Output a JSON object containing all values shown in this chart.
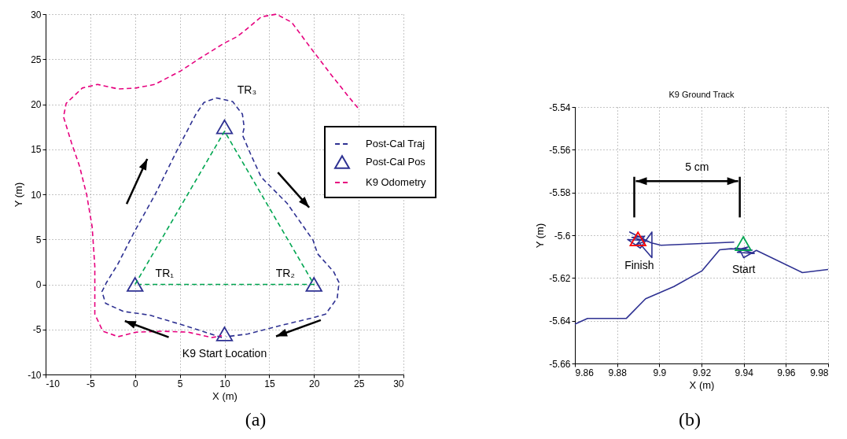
{
  "chart_data": [
    {
      "type": "line",
      "xlabel": "X (m)",
      "ylabel": "Y (m)",
      "xlim": [
        -10,
        30
      ],
      "ylim": [
        -10,
        30
      ],
      "xticks": [
        -10,
        -5,
        0,
        5,
        10,
        15,
        20,
        25,
        30
      ],
      "yticks": [
        -10,
        -5,
        0,
        5,
        10,
        15,
        20,
        25,
        30
      ],
      "grid": true,
      "legend": "right",
      "series": [
        {
          "name": "Post-Cal Traj",
          "color": "#2e3192",
          "line_style": "dashed",
          "marker": "none",
          "x": [
            9.7,
            5.65,
            1.6,
            -1.3,
            -3.3,
            -3.7,
            -3.2,
            -1.9,
            -0.1,
            2.2,
            4.8,
            6.8,
            7.7,
            9.1,
            10.9,
            12.0,
            12.2,
            12.0,
            12.9,
            14.1,
            17.0,
            19.9,
            20.4,
            22.2,
            22.8,
            22.6,
            21.3,
            19.9,
            16.1,
            12.6,
            10.2
          ],
          "values": [
            -5.9,
            -4.6,
            -3.4,
            -3.0,
            -2.1,
            -0.8,
            0.2,
            2.3,
            5.8,
            9.9,
            15.1,
            18.9,
            20.2,
            20.7,
            20.3,
            18.9,
            17.4,
            16.6,
            14.5,
            11.9,
            9.0,
            4.9,
            3.4,
            1.4,
            0.2,
            -1.5,
            -3.3,
            -3.7,
            -4.6,
            -5.5,
            -5.8
          ]
        },
        {
          "name": "Post-Cal Pos",
          "type": "scatter",
          "color": "#2e3192",
          "marker": "triangle",
          "x": [
            0,
            20,
            10,
            10
          ],
          "values": [
            0,
            0,
            17.5,
            -5.5
          ]
        },
        {
          "name": "K9 Odometry",
          "color": "#e6007e",
          "line_style": "dashed",
          "marker": "none",
          "x": [
            24.9,
            23.9,
            21.9,
            19.9,
            17.5,
            15.8,
            14.1,
            12.3,
            11.4,
            10.0,
            7.4,
            5.1,
            2.2,
            0.1,
            -1.9,
            -4.2,
            -5.9,
            -7.7,
            -8.0,
            -7.1,
            -6.2,
            -5.4,
            -4.8,
            -4.5,
            -4.5,
            -3.6,
            -1.9,
            0.1,
            3.0,
            5.9,
            8.6,
            9.7
          ],
          "values": [
            19.6,
            20.8,
            23.3,
            25.9,
            29.1,
            30.0,
            29.7,
            28.2,
            27.5,
            26.8,
            25.2,
            23.7,
            22.2,
            21.8,
            21.7,
            22.2,
            21.8,
            20.1,
            18.6,
            15.7,
            13.1,
            9.9,
            6.4,
            2.0,
            -3.3,
            -5.2,
            -5.8,
            -5.3,
            -5.2,
            -5.3,
            -5.9,
            -5.7
          ]
        },
        {
          "color": "#00a651",
          "line_style": "dashed",
          "marker": "none",
          "x": [
            0,
            10,
            20,
            0.5
          ],
          "values": [
            0,
            17,
            0,
            0
          ]
        }
      ],
      "annotations": [
        "TR₁",
        "TR₂",
        "TR₃",
        "K9 Start Location",
        "(a)"
      ]
    },
    {
      "type": "line",
      "title": "K9 Ground Track",
      "xlabel": "X (m)",
      "ylabel": "Y (m)",
      "xlim": [
        9.86,
        9.98
      ],
      "ylim": [
        -5.66,
        -5.54
      ],
      "xticks": [
        9.86,
        9.88,
        9.9,
        9.92,
        9.94,
        9.96,
        9.98
      ],
      "yticks": [
        -5.66,
        -5.64,
        -5.62,
        -5.6,
        -5.58,
        -5.56,
        -5.54
      ],
      "grid": true,
      "series": [
        {
          "color": "#2e3192",
          "line_style": "solid",
          "marker": "none",
          "x": [
            9.86,
            9.866,
            9.8844,
            9.8935,
            9.9069,
            9.9203,
            9.9286,
            9.934,
            9.944,
            9.936,
            9.945,
            9.937,
            9.942,
            9.938,
            9.94,
            9.946,
            9.9678,
            9.98
          ],
          "values": [
            -5.6416,
            -5.6389,
            -5.6389,
            -5.6297,
            -5.624,
            -5.6166,
            -5.6068,
            -5.6063,
            -5.607,
            -5.606,
            -5.6085,
            -5.608,
            -5.6055,
            -5.6065,
            -5.6105,
            -5.6071,
            -5.6175,
            -5.616
          ]
        },
        {
          "color": "#2e3192",
          "line_style": "solid",
          "marker": "none",
          "x": [
            9.9355,
            9.9008,
            9.896,
            9.886,
            9.895,
            9.887,
            9.893,
            9.889,
            9.894,
            9.885,
            9.891,
            9.8965,
            9.8965,
            9.89
          ],
          "values": [
            -5.6032,
            -5.6047,
            -5.6035,
            -5.5985,
            -5.603,
            -5.601,
            -5.6005,
            -5.6045,
            -5.6025,
            -5.602,
            -5.606,
            -5.5985,
            -5.6105,
            -5.603
          ]
        },
        {
          "type": "scatter",
          "colors": [
            "#ff0000",
            "#00a651"
          ],
          "marker": "triangle",
          "x": [
            9.8899,
            9.9398
          ],
          "values": [
            -5.6017,
            -5.6039
          ]
        }
      ],
      "annotations": [
        "Finish",
        "Start",
        "5 cm",
        "(b)"
      ]
    }
  ]
}
